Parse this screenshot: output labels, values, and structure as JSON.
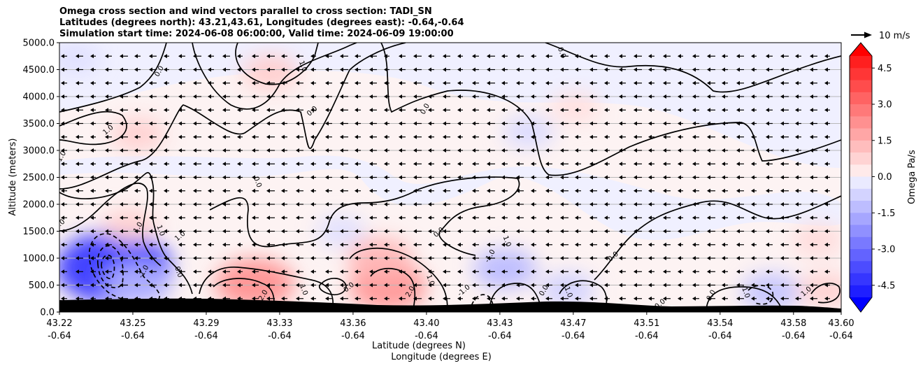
{
  "chart_data": {
    "type": "heatmap",
    "title_lines": [
      "Omega cross section and wind vectors parallel to cross section: TADI_SN",
      "Latitudes (degrees north): 43.21,43.61, Longitudes (degrees east): -0.64,-0.64",
      "Simulation start time: 2024-06-08 06:00:00, Valid time: 2024-06-09 19:00:00"
    ],
    "xlabel_line1": "Latitude (degrees N)",
    "xlabel_line2": "Longitude (degrees E)",
    "ylabel": "Altitude (meters)",
    "x_ticks": [
      {
        "lat": "43.22",
        "lon": "-0.64"
      },
      {
        "lat": "43.25",
        "lon": "-0.64"
      },
      {
        "lat": "43.29",
        "lon": "-0.64"
      },
      {
        "lat": "43.33",
        "lon": "-0.64"
      },
      {
        "lat": "43.36",
        "lon": "-0.64"
      },
      {
        "lat": "43.40",
        "lon": "-0.64"
      },
      {
        "lat": "43.43",
        "lon": "-0.64"
      },
      {
        "lat": "43.47",
        "lon": "-0.64"
      },
      {
        "lat": "43.51",
        "lon": "-0.64"
      },
      {
        "lat": "43.54",
        "lon": "-0.64"
      },
      {
        "lat": "43.58",
        "lon": "-0.64"
      },
      {
        "lat": "43.60",
        "lon": "-0.64"
      }
    ],
    "x_tick_fractions": [
      0,
      0.0939,
      0.1878,
      0.2817,
      0.3756,
      0.4695,
      0.5634,
      0.6573,
      0.7512,
      0.8451,
      0.939,
      1
    ],
    "y_ticks": [
      "0.0",
      "500.0",
      "1000.0",
      "1500.0",
      "2000.0",
      "2500.0",
      "3000.0",
      "3500.0",
      "4000.0",
      "4500.0",
      "5000.0"
    ],
    "y_range": [
      0,
      5000
    ],
    "colorbar": {
      "label": "Omega Pa/s",
      "range": [
        -5,
        5
      ],
      "ticks": [
        "-4.5",
        "-3.0",
        "-1.5",
        "0.0",
        "1.5",
        "3.0",
        "4.5"
      ],
      "tick_values": [
        -4.5,
        -3.0,
        -1.5,
        0.0,
        1.5,
        3.0,
        4.5
      ],
      "negative_color": "#0000ff",
      "positive_color": "#ff0000",
      "neutral_color": "#ffffff"
    },
    "quiver_key": {
      "label": "10 m/s"
    },
    "omega_blobs": [
      {
        "lat_frac": 0.02,
        "alt": 4700,
        "omega": -0.5
      },
      {
        "lat_frac": 0.1,
        "alt": 3300,
        "omega": 0.8
      },
      {
        "lat_frac": 0.27,
        "alt": 4450,
        "omega": 0.9
      },
      {
        "lat_frac": 0.6,
        "alt": 3350,
        "omega": -0.6
      },
      {
        "lat_frac": 0.66,
        "alt": 3800,
        "omega": 0.5
      },
      {
        "lat_frac": 0.07,
        "alt": 820,
        "omega": -4.2
      },
      {
        "lat_frac": 0.1,
        "alt": 520,
        "omega": -1.5
      },
      {
        "lat_frac": 0.09,
        "alt": 1600,
        "omega": 0.8
      },
      {
        "lat_frac": 0.25,
        "alt": 530,
        "omega": 2.2
      },
      {
        "lat_frac": 0.42,
        "alt": 470,
        "omega": 2.1
      },
      {
        "lat_frac": 0.41,
        "alt": 1000,
        "omega": 1.4
      },
      {
        "lat_frac": 0.57,
        "alt": 800,
        "omega": -1.3
      },
      {
        "lat_frac": 0.65,
        "alt": 420,
        "omega": -0.8
      },
      {
        "lat_frac": 0.91,
        "alt": 370,
        "omega": -1.1
      },
      {
        "lat_frac": 0.97,
        "alt": 1330,
        "omega": 0.6
      },
      {
        "lat_frac": 0.98,
        "alt": 410,
        "omega": 0.8
      },
      {
        "lat_frac": 0.36,
        "alt": 1500,
        "omega": -0.5
      }
    ],
    "contour_labels": [
      {
        "text": "0.0",
        "lat_frac": 0.13,
        "alt": 4450
      },
      {
        "text": "1.0",
        "lat_frac": 0.309,
        "alt": 4550
      },
      {
        "text": "0.0",
        "lat_frac": 0.325,
        "alt": 3700
      },
      {
        "text": "0.0",
        "lat_frac": 0.47,
        "alt": 3750
      },
      {
        "text": "0.0",
        "lat_frac": 0.64,
        "alt": 4800
      },
      {
        "text": "1.0",
        "lat_frac": 0.064,
        "alt": 3350
      },
      {
        "text": "1.0",
        "lat_frac": 0.005,
        "alt": 2870
      },
      {
        "text": "0.0",
        "lat_frac": 0.251,
        "alt": 2400
      },
      {
        "text": "1.0",
        "lat_frac": 0.002,
        "alt": 1600
      },
      {
        "text": "1.0",
        "lat_frac": 0.103,
        "alt": 1550
      },
      {
        "text": "1.0",
        "lat_frac": 0.127,
        "alt": 1500
      },
      {
        "text": "1.0",
        "lat_frac": 0.156,
        "alt": 1380
      },
      {
        "text": "-1.0",
        "lat_frac": 0.11,
        "alt": 730
      },
      {
        "text": "0.0",
        "lat_frac": 0.15,
        "alt": 730
      },
      {
        "text": "0.0",
        "lat_frac": 0.487,
        "alt": 1450
      },
      {
        "text": "-1.0",
        "lat_frac": 0.553,
        "alt": 1020
      },
      {
        "text": "1.0",
        "lat_frac": 0.57,
        "alt": 1300
      },
      {
        "text": "0.0",
        "lat_frac": 0.71,
        "alt": 1000
      },
      {
        "text": "2.0",
        "lat_frac": 0.263,
        "alt": 290
      },
      {
        "text": "1.0",
        "lat_frac": 0.31,
        "alt": 400
      },
      {
        "text": "0.0",
        "lat_frac": 0.372,
        "alt": 430
      },
      {
        "text": "2.0",
        "lat_frac": 0.451,
        "alt": 360
      },
      {
        "text": "1.0",
        "lat_frac": 0.472,
        "alt": 580
      },
      {
        "text": "-1.0",
        "lat_frac": 0.519,
        "alt": 370
      },
      {
        "text": "0.0",
        "lat_frac": 0.622,
        "alt": 380
      },
      {
        "text": "-1.0",
        "lat_frac": 0.648,
        "alt": 380
      },
      {
        "text": "0.0",
        "lat_frac": 0.77,
        "alt": 120
      },
      {
        "text": "0.0",
        "lat_frac": 0.836,
        "alt": 290
      },
      {
        "text": "-1.0",
        "lat_frac": 0.875,
        "alt": 370
      },
      {
        "text": "1.0",
        "lat_frac": 0.957,
        "alt": 350
      }
    ]
  }
}
